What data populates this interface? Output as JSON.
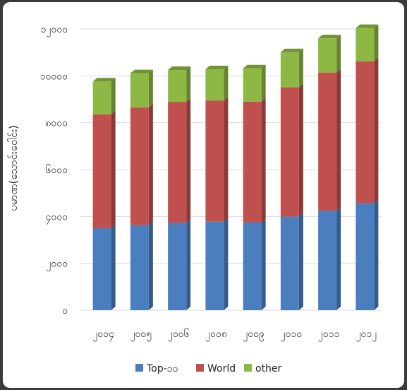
{
  "chart_data": {
    "type": "bar",
    "stacked": true,
    "style": "3d",
    "title": "",
    "xlabel": "",
    "ylabel": "ပမာဏ(သောင်းဝေါင်း)",
    "categories": [
      "၂၀၀၄",
      "၂၀၀၅",
      "၂၀၀၆",
      "၂၀၀၈",
      "၂၀၀၉",
      "၂၀၁၀",
      "၂၀၁၁",
      "၂၀၁၂"
    ],
    "series": [
      {
        "name": "Top-၁၀",
        "color": "#4a7ebf",
        "values": [
          3500,
          3620,
          3720,
          3780,
          3740,
          3990,
          4240,
          4560
        ]
      },
      {
        "name": "World",
        "color": "#c0504d",
        "values": [
          4860,
          5030,
          5160,
          5160,
          5160,
          5520,
          5900,
          6060
        ]
      },
      {
        "name": "other",
        "color": "#8db843",
        "values": [
          1400,
          1460,
          1370,
          1340,
          1420,
          1500,
          1460,
          1420
        ]
      }
    ],
    "y_ticks": [
      {
        "value": 0,
        "label": "၀"
      },
      {
        "value": 2000,
        "label": "၂၀၀၀"
      },
      {
        "value": 4000,
        "label": "၄၀၀၀"
      },
      {
        "value": 6000,
        "label": "၆၀၀၀"
      },
      {
        "value": 8000,
        "label": "၈၀၀၀"
      },
      {
        "value": 10000,
        "label": "၁၀၀၀၀"
      },
      {
        "value": 12000,
        "label": "၁၂၀၀၀"
      }
    ],
    "ylim": [
      0,
      12000
    ],
    "grid": true,
    "legend_position": "bottom"
  }
}
